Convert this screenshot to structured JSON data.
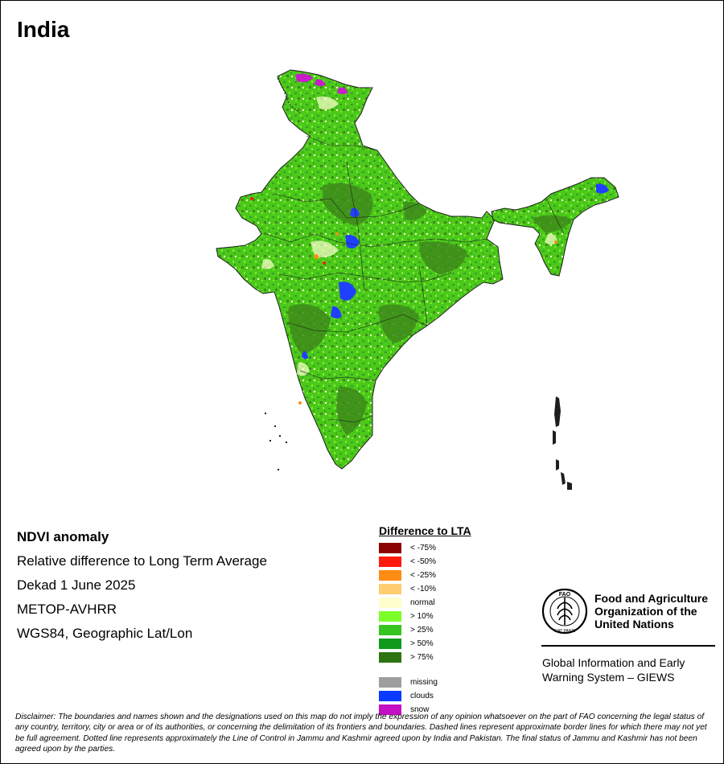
{
  "map": {
    "title": "India",
    "region_colors": {
      "base_green": "#4cc81a",
      "dark_green": "#3e8a1a",
      "mid_green": "#2fa02a",
      "light_green": "#77ef2a",
      "normal": "#ffffd0",
      "clouds": "#1f41ff",
      "snow": "#c81ec8",
      "border": "#1e1e1e"
    }
  },
  "info": {
    "product": "NDVI anomaly",
    "description": "Relative difference to Long Term Average",
    "period": "Dekad 1 June 2025",
    "sensor": "METOP-AVHRR",
    "projection": "WGS84, Geographic Lat/Lon"
  },
  "legend": {
    "title": "Difference to LTA",
    "classes": [
      {
        "label": "< -75%",
        "color": "#8b0000"
      },
      {
        "label": "< -50%",
        "color": "#ff1a0e"
      },
      {
        "label": "< -25%",
        "color": "#ff8c14"
      },
      {
        "label": "< -10%",
        "color": "#ffcc70"
      },
      {
        "label": "normal",
        "color": "#ffffcc"
      },
      {
        "label": "> 10%",
        "color": "#7cff2a"
      },
      {
        "label": "> 25%",
        "color": "#37c41e"
      },
      {
        "label": "> 50%",
        "color": "#0f9a1b"
      },
      {
        "label": "> 75%",
        "color": "#2e7412"
      }
    ],
    "extra": [
      {
        "label": "missing",
        "color": "#9e9e9e"
      },
      {
        "label": "clouds",
        "color": "#0a3aff"
      },
      {
        "label": "snow",
        "color": "#c40fc4"
      }
    ]
  },
  "fao": {
    "name_line1": "Food and Agriculture",
    "name_line2": "Organization of the",
    "name_line3": "United Nations",
    "emblem_text": "FAO",
    "motto": "FIAT PANIS",
    "giews_line1": "Global Information and Early",
    "giews_line2": "Warning System – GIEWS"
  },
  "disclaimer": "Disclaimer: The boundaries and names shown and the designations used on this map do not imply the expression of any opinion whatsoever on the part of FAO concerning the legal status of any country, territory, city or area or of its authorities, or concerning the delimitation of its frontiers and boundaries. Dashed lines represent approximate border lines for which there may not yet be full agreement. Dotted line represents approximately the Line of Control in Jammu and Kashmir agreed upon by India and Pakistan. The final status of Jammu and Kashmir has not been agreed upon by the parties."
}
